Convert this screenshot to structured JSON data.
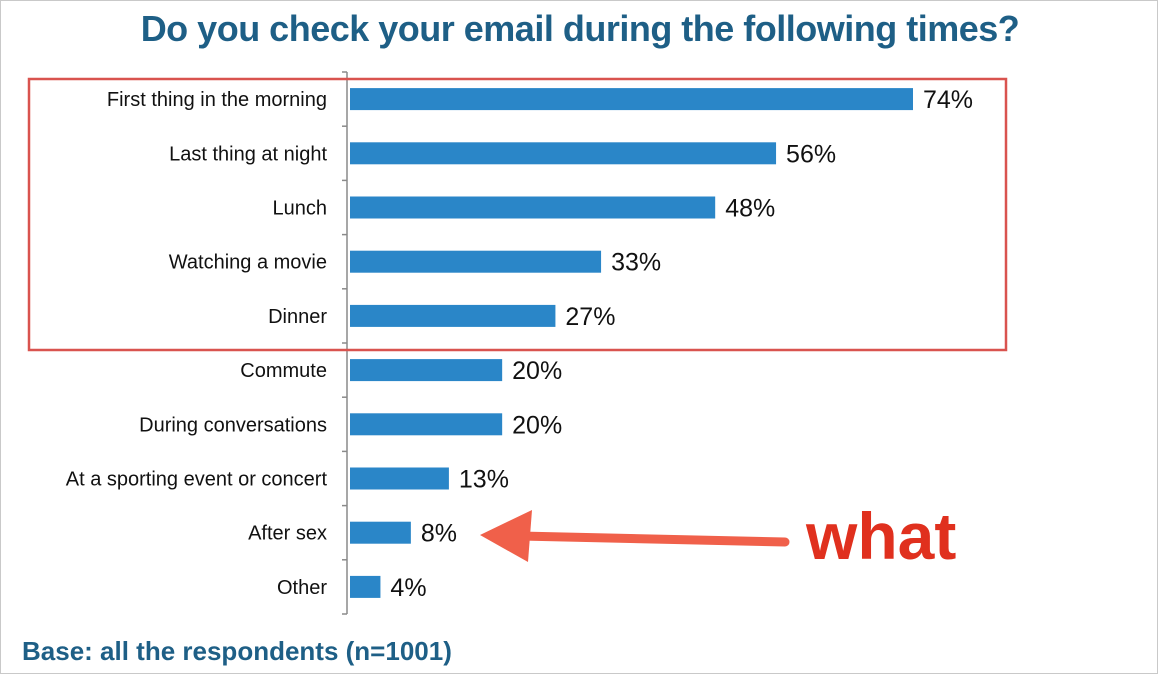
{
  "title": "Do you check your email during the following times?",
  "footnote": "Base: all the respondents (n=1001)",
  "annotation": {
    "text": "what",
    "color": "#e0301e"
  },
  "colors": {
    "bar": "#2a86c8",
    "title": "#1e5f86",
    "highlight_box": "#d9534f",
    "arrow": "#f0604a"
  },
  "chart_data": {
    "type": "bar",
    "orientation": "horizontal",
    "title": "Do you check your email during the following times?",
    "categories": [
      "First thing in the morning",
      "Last thing at night",
      "Lunch",
      "Watching a movie",
      "Dinner",
      "Commute",
      "During conversations",
      "At a sporting event or concert",
      "After sex",
      "Other"
    ],
    "values": [
      74,
      56,
      48,
      33,
      27,
      20,
      20,
      13,
      8,
      4
    ],
    "value_labels": [
      "74%",
      "56%",
      "48%",
      "33%",
      "27%",
      "20%",
      "20%",
      "13%",
      "8%",
      "4%"
    ],
    "unit": "%",
    "xlim": [
      0,
      100
    ],
    "grid": false,
    "legend": "none",
    "highlighted_categories": [
      "First thing in the morning",
      "Last thing at night",
      "Lunch",
      "Watching a movie",
      "Dinner"
    ],
    "annotated_category": "After sex"
  }
}
